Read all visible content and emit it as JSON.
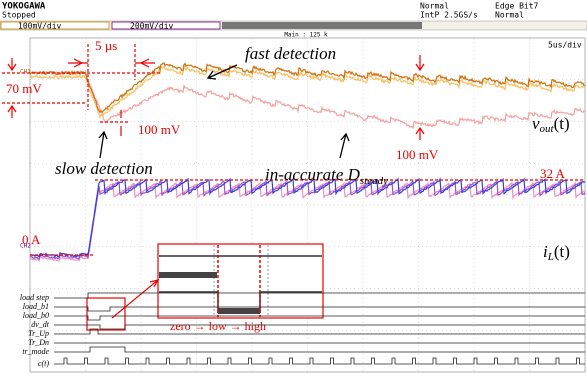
{
  "header": {
    "brand": "YOKOGAWA",
    "status": "Stopped",
    "mode": "Normal",
    "sampling": "IntP  2.5GS/s",
    "trigger": "Edge Bit7",
    "trigger_mode": "Normal"
  },
  "channels": {
    "ch1_scale": "100mV/div",
    "ch2_scale": "200mV/div",
    "main": "Main : 125 k",
    "timebase": "5us/div",
    "ch1": "CH1",
    "ch2": "CH2"
  },
  "annotations": {
    "time_gap": "5 µs",
    "fast": "fast detection",
    "slow": "slow detection",
    "drop_70": "70 mV",
    "drop_100a": "100 mV",
    "drop_100b": "100 mV",
    "current_high": "32 A",
    "current_low": "0 A",
    "inaccurate": "in-accurate D",
    "inaccurate_sub": "steady",
    "sequence": "zero → low → high"
  },
  "signals": {
    "vout": {
      "main": "v",
      "sub": "out",
      "tail": "(t)"
    },
    "il": {
      "main": "i",
      "sub": "L",
      "tail": "(t)"
    }
  },
  "digital": [
    "load step",
    "load_b1",
    "load_b0",
    "dv_dt",
    "Tr_Up",
    "Tr_Dn",
    "tr_mode",
    "c(t)"
  ]
}
